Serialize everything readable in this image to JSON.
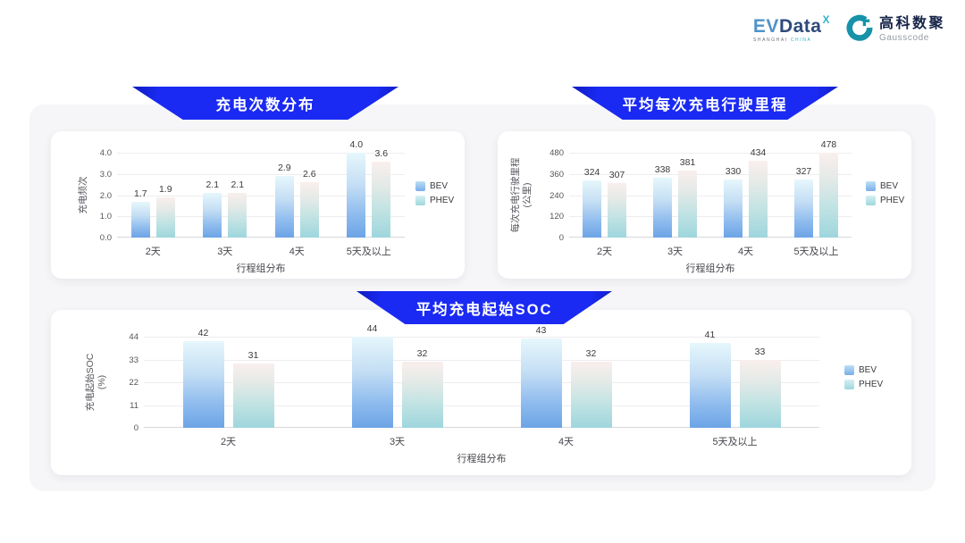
{
  "header": {
    "evdata": {
      "ev": "EV",
      "data": "Data",
      "x": "X",
      "sub1": "SHANGHAI",
      "sub2": "CHINA"
    },
    "gausscode": {
      "cn": "高科数聚",
      "en": "Gausscode"
    }
  },
  "colors": {
    "banner_blue": "#1a2af2",
    "bev_bar_top": "#e6f7fc",
    "bev_bar_bottom": "#6ca4e6",
    "phev_bar_top": "#f9efed",
    "phev_bar_bottom": "#9dd6dd",
    "panel_bg": "#f6f6f8",
    "card_bg": "#ffffff"
  },
  "chart_data": [
    {
      "type": "bar",
      "title": "充电次数分布",
      "categories": [
        "2天",
        "3天",
        "4天",
        "5天及以上"
      ],
      "series": [
        {
          "name": "BEV",
          "values": [
            1.7,
            2.1,
            2.9,
            4.0
          ]
        },
        {
          "name": "PHEV",
          "values": [
            1.9,
            2.1,
            2.6,
            3.6
          ]
        }
      ],
      "xlabel": "行程组分布",
      "ylabel": "充电频次",
      "ylabel2": "",
      "yticks": [
        0,
        1,
        2,
        3,
        4
      ],
      "ytick_labels": [
        "0.0",
        "1.0",
        "2.0",
        "3.0",
        "4.0"
      ],
      "ylim": [
        0,
        4
      ],
      "value_decimals": 1,
      "grid": true,
      "legend_position": "right"
    },
    {
      "type": "bar",
      "title": "平均每次充电行驶里程",
      "categories": [
        "2天",
        "3天",
        "4天",
        "5天及以上"
      ],
      "series": [
        {
          "name": "BEV",
          "values": [
            324,
            338,
            330,
            327
          ]
        },
        {
          "name": "PHEV",
          "values": [
            307,
            381,
            434,
            478
          ]
        }
      ],
      "xlabel": "行程组分布",
      "ylabel": "每次充电行驶里程",
      "ylabel2": "(公里)",
      "yticks": [
        0,
        120,
        240,
        360,
        480
      ],
      "ytick_labels": [
        "0",
        "120",
        "240",
        "360",
        "480"
      ],
      "ylim": [
        0,
        480
      ],
      "value_decimals": 0,
      "grid": true,
      "legend_position": "right"
    },
    {
      "type": "bar",
      "title": "平均充电起始SOC",
      "categories": [
        "2天",
        "3天",
        "4天",
        "5天及以上"
      ],
      "series": [
        {
          "name": "BEV",
          "values": [
            42,
            44,
            43,
            41
          ]
        },
        {
          "name": "PHEV",
          "values": [
            31,
            32,
            32,
            33
          ]
        }
      ],
      "xlabel": "行程组分布",
      "ylabel": "充电起始SOC",
      "ylabel2": "(%)",
      "yticks": [
        0,
        11,
        22,
        33,
        44
      ],
      "ytick_labels": [
        "0",
        "11",
        "22",
        "33",
        "44"
      ],
      "ylim": [
        0,
        44
      ],
      "value_decimals": 0,
      "grid": true,
      "legend_position": "right"
    }
  ]
}
